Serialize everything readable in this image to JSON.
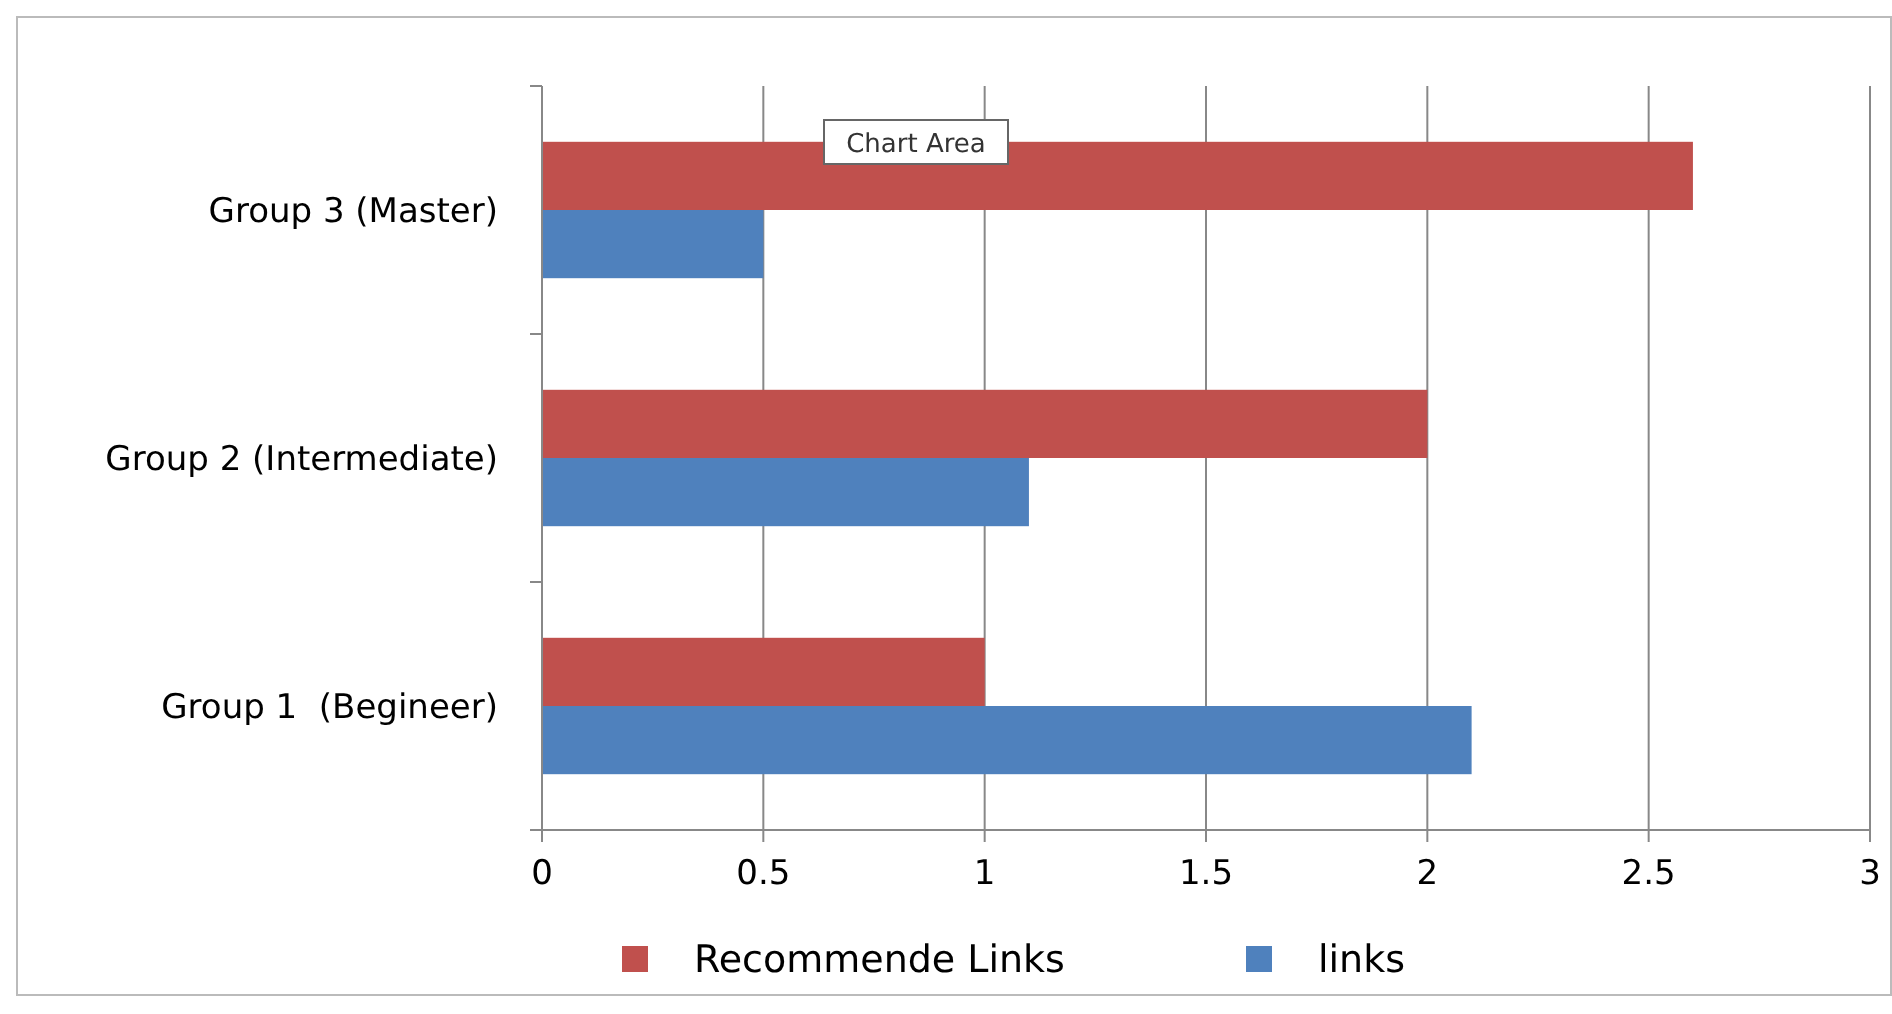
{
  "chart_data": {
    "type": "bar",
    "orientation": "horizontal",
    "categories": [
      "Group 3 (Master)",
      "Group 2 (Intermediate)",
      "Group 1  (Begineer)"
    ],
    "series": [
      {
        "name": "Recommende Links",
        "color": "#c0504d",
        "values": [
          2.6,
          2.0,
          1.0
        ]
      },
      {
        "name": "links",
        "color": "#4f81bd",
        "values": [
          0.5,
          1.1,
          2.1
        ]
      }
    ],
    "xlim": [
      0,
      3
    ],
    "xticks": [
      0,
      0.5,
      1,
      1.5,
      2,
      2.5,
      3
    ],
    "grid": "x",
    "legend": "bottom",
    "annotations": [
      "Chart Area"
    ]
  }
}
